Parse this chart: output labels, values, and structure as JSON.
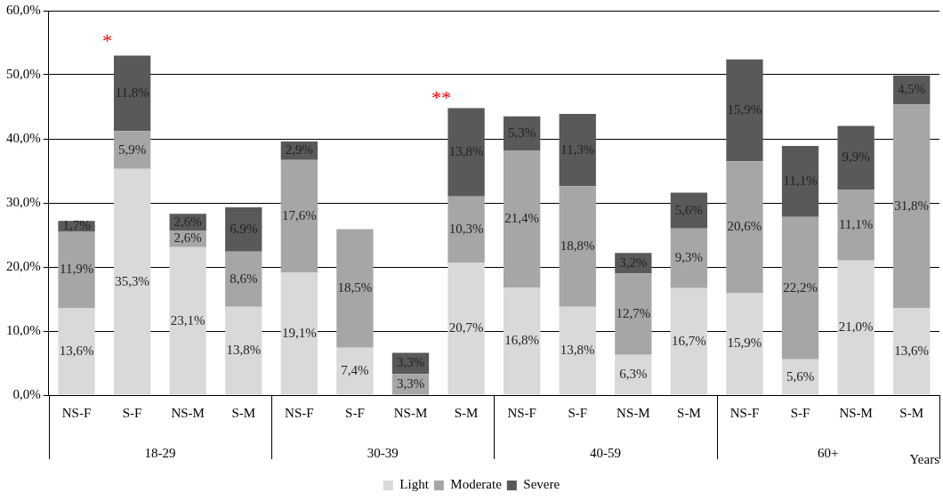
{
  "chart_data": {
    "type": "bar",
    "stacked": true,
    "xlabel": "Years",
    "categories": [
      "NS-F",
      "S-F",
      "NS-M",
      "S-M",
      "NS-F",
      "S-F",
      "NS-M",
      "S-M",
      "NS-F",
      "S-F",
      "NS-M",
      "S-M",
      "NS-F",
      "S-F",
      "NS-M",
      "S-M"
    ],
    "series": [
      {
        "name": "Light",
        "color": "#d9d9d9",
        "values": [
          13.6,
          35.3,
          23.1,
          13.8,
          19.1,
          7.4,
          null,
          20.7,
          16.8,
          13.8,
          6.3,
          16.7,
          15.9,
          5.6,
          21.0,
          13.6
        ],
        "value_labels": [
          "13,6%",
          "35,3%",
          "23,1%",
          "13,8%",
          "19,1%",
          "7,4%",
          null,
          "20,7%",
          "16,8%",
          "13,8%",
          "6,3%",
          "16,7%",
          "15,9%",
          "5,6%",
          "21,0%",
          "13,6%"
        ]
      },
      {
        "name": "Moderate",
        "color": "#a6a6a6",
        "values": [
          11.9,
          5.9,
          2.6,
          8.6,
          17.6,
          18.5,
          3.3,
          10.3,
          21.4,
          18.8,
          12.7,
          9.3,
          20.6,
          22.2,
          11.1,
          31.8
        ],
        "value_labels": [
          "11,9%",
          "5,9%",
          "2,6%",
          "8,6%",
          "17,6%",
          "18,5%",
          "3,3%",
          "10,3%",
          "21,4%",
          "18,8%",
          "12,7%",
          "9,3%",
          "20,6%",
          "22,2%",
          "11,1%",
          "31,8%"
        ]
      },
      {
        "name": "Severe",
        "color": "#595959",
        "values": [
          1.7,
          11.8,
          2.6,
          6.9,
          2.9,
          null,
          3.3,
          13.8,
          5.3,
          11.3,
          3.2,
          5.6,
          15.9,
          11.1,
          9.9,
          4.5
        ],
        "value_labels": [
          "1,7%",
          "11,8%",
          "2,6%",
          "6,9%",
          "2,9%",
          null,
          "3,3%",
          "13,8%",
          "5,3%",
          "11,3%",
          "3,2%",
          "5,6%",
          "15,9%",
          "11,1%",
          "9,9%",
          "4,5%"
        ]
      }
    ],
    "ylim": [
      0,
      60
    ],
    "yticks": [
      {
        "value": 0,
        "label": "0,0%"
      },
      {
        "value": 10,
        "label": "10,0%"
      },
      {
        "value": 20,
        "label": "20,0%"
      },
      {
        "value": 30,
        "label": "30,0%"
      },
      {
        "value": 40,
        "label": "40,0%"
      },
      {
        "value": 50,
        "label": "50,0%"
      },
      {
        "value": 60,
        "label": "60,0%"
      }
    ],
    "grid": "y",
    "legend": "bottom",
    "annotations": [
      "18-29",
      "30-39",
      "40-59",
      "60+",
      "*",
      "**"
    ]
  }
}
